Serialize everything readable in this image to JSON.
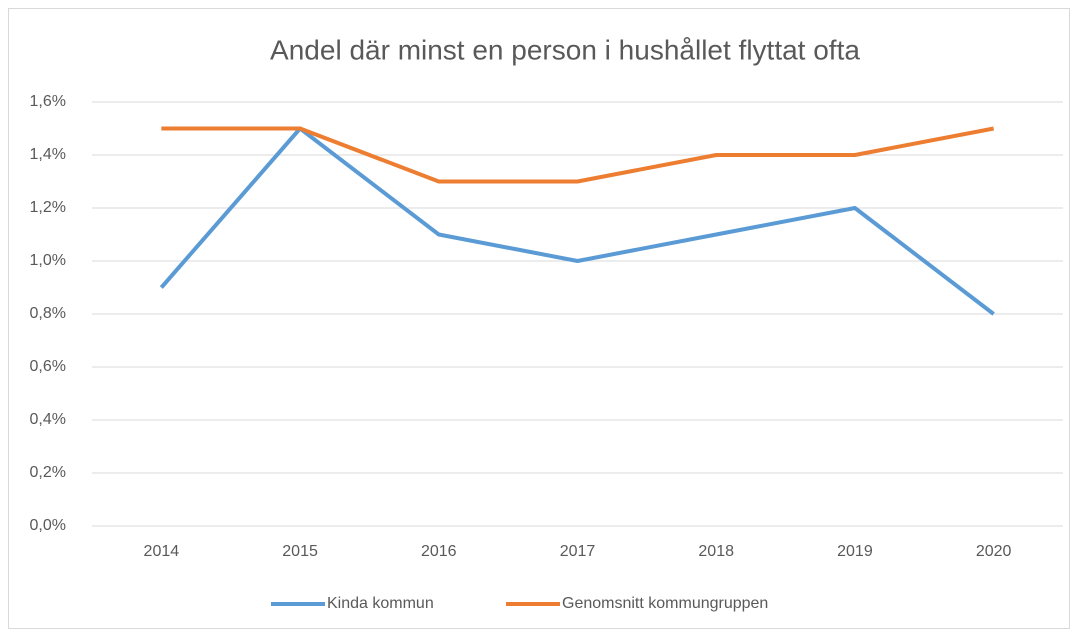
{
  "chart_data": {
    "type": "line",
    "title": "Andel där minst en person i hushållet flyttat ofta",
    "categories": [
      "2014",
      "2015",
      "2016",
      "2017",
      "2018",
      "2019",
      "2020"
    ],
    "series": [
      {
        "name": "Kinda kommun",
        "color": "#5b9bd5",
        "values": [
          0.9,
          1.5,
          1.1,
          1.0,
          1.1,
          1.2,
          0.8
        ]
      },
      {
        "name": "Genomsnitt kommungruppen",
        "color": "#ed7d31",
        "values": [
          1.5,
          1.5,
          1.3,
          1.3,
          1.4,
          1.4,
          1.5
        ]
      }
    ],
    "ylim": [
      0,
      1.6
    ],
    "yticks": [
      {
        "value": 0,
        "label": "0,0%"
      },
      {
        "value": 0.2,
        "label": "0,2%"
      },
      {
        "value": 0.4,
        "label": "0,4%"
      },
      {
        "value": 0.6,
        "label": "0,6%"
      },
      {
        "value": 0.8,
        "label": "0,8%"
      },
      {
        "value": 1.0,
        "label": "1,0%"
      },
      {
        "value": 1.2,
        "label": "1,2%"
      },
      {
        "value": 1.4,
        "label": "1,4%"
      },
      {
        "value": 1.6,
        "label": "1,6%"
      }
    ],
    "grid": true,
    "legend": "bottom"
  }
}
